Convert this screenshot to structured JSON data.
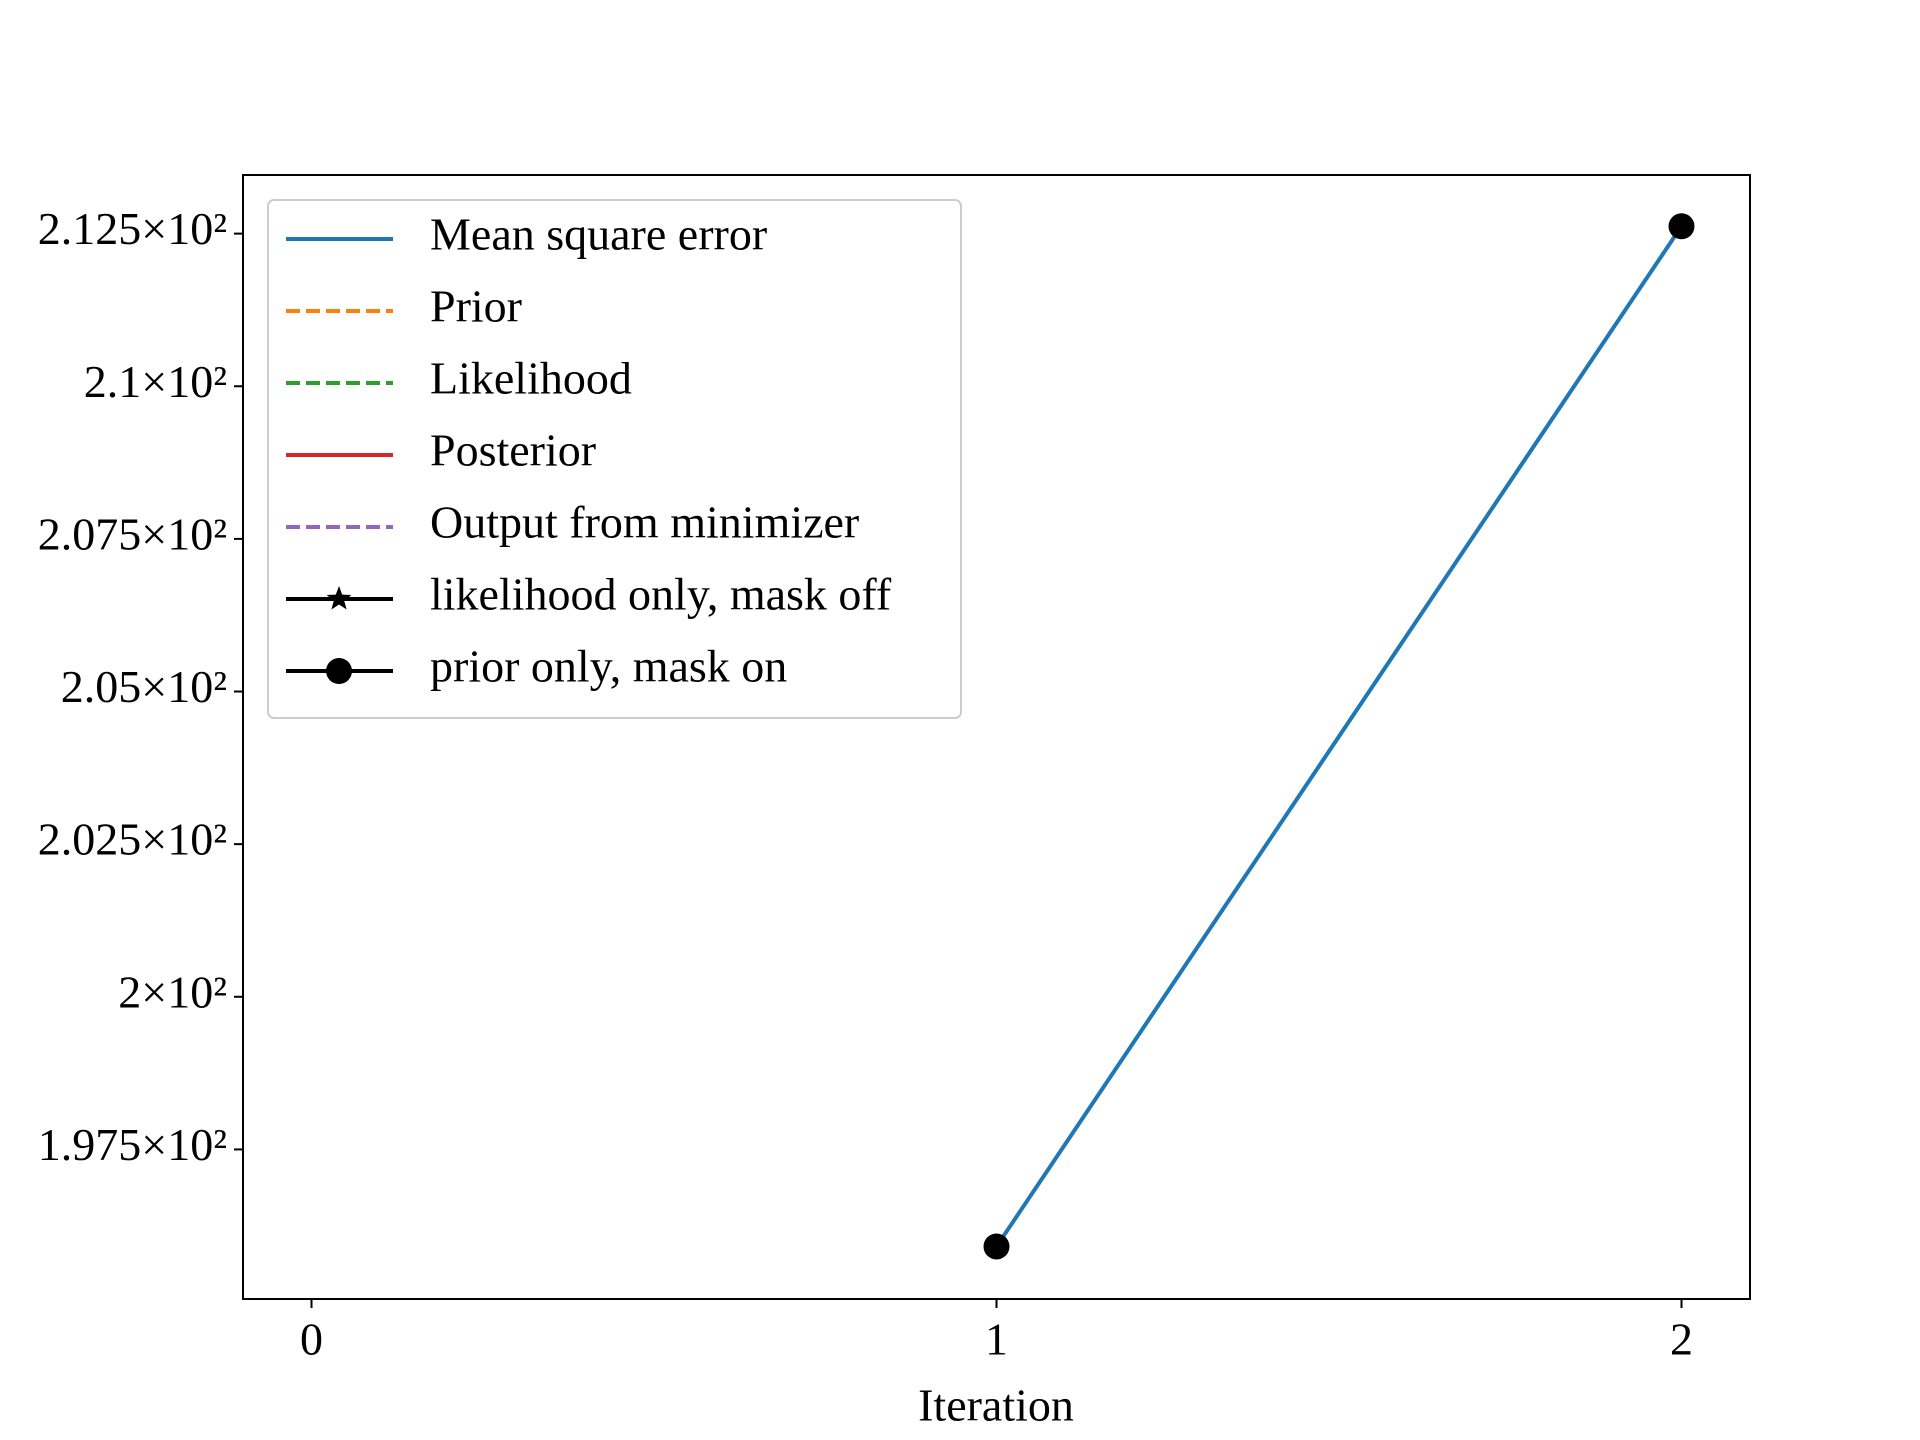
{
  "chart_data": {
    "type": "line",
    "x_label": "Iteration",
    "x": [
      1,
      2
    ],
    "xlim": [
      -0.1,
      2.1
    ],
    "xticks": [
      0,
      1,
      2
    ],
    "ylim": [
      195.05,
      213.46
    ],
    "yticks": [
      {
        "value": 197.5,
        "label": "1.975×10²"
      },
      {
        "value": 200,
        "label": "2×10²"
      },
      {
        "value": 202.5,
        "label": "2.025×10²"
      },
      {
        "value": 205,
        "label": "2.05×10²"
      },
      {
        "value": 207.5,
        "label": "2.075×10²"
      },
      {
        "value": 210,
        "label": "2.1×10²"
      },
      {
        "value": 212.5,
        "label": "2.125×10²"
      }
    ],
    "legend": "upper left",
    "series": [
      {
        "name": "Mean square error",
        "color": "#1f77b4",
        "dash": "solid",
        "values": [
          195.91,
          212.62
        ]
      },
      {
        "name": "Prior",
        "color": "#ff7f0e",
        "dash": "dashed"
      },
      {
        "name": "Likelihood",
        "color": "#2ca02c",
        "dash": "dashed"
      },
      {
        "name": "Posterior",
        "color": "#d62728",
        "dash": "solid"
      },
      {
        "name": "Output from minimizer",
        "color": "#9467bd",
        "dash": "dashed"
      },
      {
        "name": "likelihood only, mask off",
        "color": "#000000",
        "dash": "solid",
        "marker": "star"
      },
      {
        "name": "prior only, mask on",
        "color": "#000000",
        "dash": "solid",
        "marker": "circle",
        "values": [
          195.91,
          212.62
        ]
      }
    ]
  }
}
